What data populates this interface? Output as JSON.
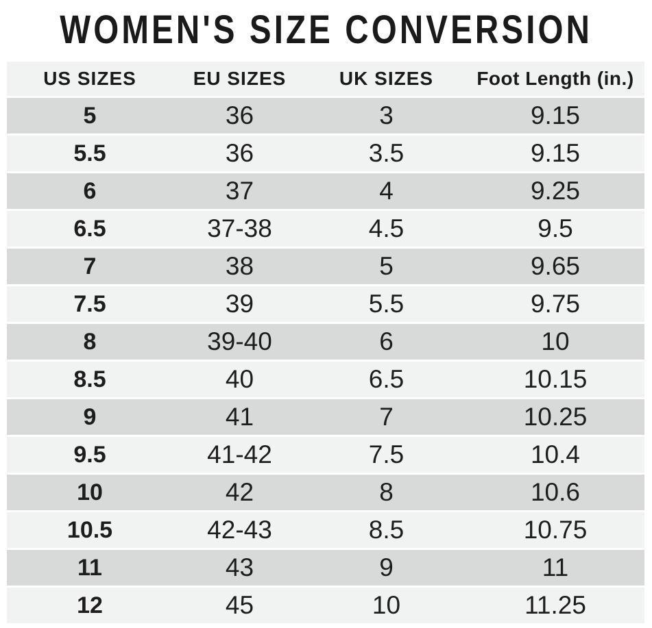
{
  "page": {
    "title": "WOMEN'S SIZE CONVERSION"
  },
  "colors": {
    "background": "#ffffff",
    "header_bg": "#f1f2f2",
    "row_gray": "#d8dada",
    "row_light": "#f1f2f2",
    "text": "#1d1d1d",
    "title_text": "#1a1a1a"
  },
  "table": {
    "columns": [
      "US SIZES",
      "EU SIZES",
      "UK SIZES",
      "Foot Length (in.)"
    ],
    "rows": [
      [
        "5",
        "36",
        "3",
        "9.15"
      ],
      [
        "5.5",
        "36",
        "3.5",
        "9.15"
      ],
      [
        "6",
        "37",
        "4",
        "9.25"
      ],
      [
        "6.5",
        "37-38",
        "4.5",
        "9.5"
      ],
      [
        "7",
        "38",
        "5",
        "9.65"
      ],
      [
        "7.5",
        "39",
        "5.5",
        "9.75"
      ],
      [
        "8",
        "39-40",
        "6",
        "10"
      ],
      [
        "8.5",
        "40",
        "6.5",
        "10.15"
      ],
      [
        "9",
        "41",
        "7",
        "10.25"
      ],
      [
        "9.5",
        "41-42",
        "7.5",
        "10.4"
      ],
      [
        "10",
        "42",
        "8",
        "10.6"
      ],
      [
        "10.5",
        "42-43",
        "8.5",
        "10.75"
      ],
      [
        "11",
        "43",
        "9",
        "11"
      ],
      [
        "12",
        "45",
        "10",
        "11.25"
      ]
    ]
  },
  "chart_data": {
    "type": "table",
    "title": "WOMEN'S SIZE CONVERSION",
    "columns": [
      "US SIZES",
      "EU SIZES",
      "UK SIZES",
      "Foot Length (in.)"
    ],
    "rows": [
      [
        "5",
        "36",
        "3",
        "9.15"
      ],
      [
        "5.5",
        "36",
        "3.5",
        "9.15"
      ],
      [
        "6",
        "37",
        "4",
        "9.25"
      ],
      [
        "6.5",
        "37-38",
        "4.5",
        "9.5"
      ],
      [
        "7",
        "38",
        "5",
        "9.65"
      ],
      [
        "7.5",
        "39",
        "5.5",
        "9.75"
      ],
      [
        "8",
        "39-40",
        "6",
        "10"
      ],
      [
        "8.5",
        "40",
        "6.5",
        "10.15"
      ],
      [
        "9",
        "41",
        "7",
        "10.25"
      ],
      [
        "9.5",
        "41-42",
        "7.5",
        "10.4"
      ],
      [
        "10",
        "42",
        "8",
        "10.6"
      ],
      [
        "10.5",
        "42-43",
        "8.5",
        "10.75"
      ],
      [
        "11",
        "43",
        "9",
        "11"
      ],
      [
        "12",
        "45",
        "10",
        "11.25"
      ]
    ],
    "layout": {
      "row_striping": "alternating gray/light starting gray",
      "first_column_bold": true,
      "values_centered": true
    }
  }
}
